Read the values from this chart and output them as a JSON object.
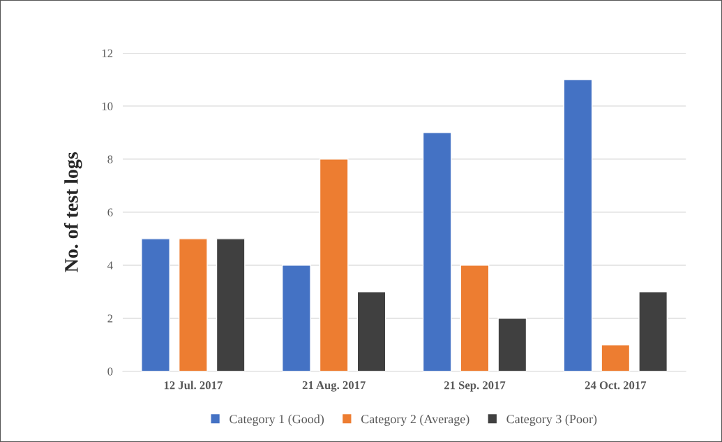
{
  "chart_data": {
    "type": "bar",
    "ylabel": "No. of test logs",
    "categories": [
      "12 Jul. 2017",
      "21 Aug. 2017",
      "21 Sep. 2017",
      "24 Oct. 2017"
    ],
    "series": [
      {
        "name": "Category 1 (Good)",
        "color": "#4472c4",
        "values": [
          5,
          4,
          9,
          11
        ]
      },
      {
        "name": "Category 2 (Average)",
        "color": "#ed7d31",
        "values": [
          5,
          8,
          4,
          1
        ]
      },
      {
        "name": "Category 3 (Poor)",
        "color": "#404040",
        "values": [
          5,
          3,
          2,
          3
        ]
      }
    ],
    "ylim": [
      0,
      12
    ],
    "yticks": [
      0,
      2,
      4,
      6,
      8,
      10,
      12
    ],
    "grid": "y",
    "legend": "bottom"
  }
}
